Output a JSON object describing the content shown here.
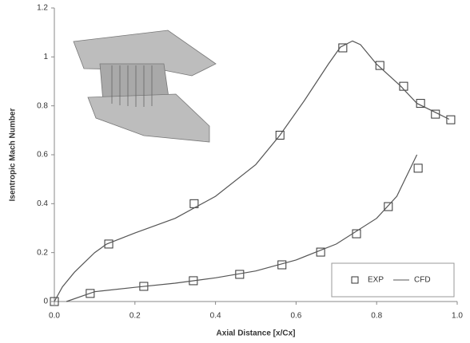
{
  "chart_data": {
    "type": "line",
    "xlabel": "Axial Distance [x/Cx]",
    "ylabel": "Isentropic Mach Number",
    "xlim": [
      0,
      1
    ],
    "ylim": [
      0,
      1.2
    ],
    "xticks": [
      {
        "value": 0,
        "label": "0.0"
      },
      0.2,
      0.4,
      0.6,
      0.8,
      {
        "value": 1,
        "label": "1.0"
      }
    ],
    "yticks": [
      0,
      0.2,
      0.4,
      0.6,
      0.8,
      1,
      1.2
    ],
    "grid": false,
    "legend": "lower right",
    "series": [
      {
        "name": "EXP",
        "color": "#333333",
        "marker": "square",
        "x": [
          0.0,
          0.135,
          0.347,
          0.56,
          0.716,
          0.808,
          0.867,
          0.909,
          0.946,
          0.984,
          0.089,
          0.222,
          0.345,
          0.46,
          0.565,
          0.661,
          0.75,
          0.829,
          0.903
        ],
        "values": [
          0.0,
          0.235,
          0.4,
          0.68,
          1.037,
          0.965,
          0.88,
          0.81,
          0.766,
          0.743,
          0.033,
          0.062,
          0.085,
          0.111,
          0.15,
          0.202,
          0.277,
          0.388,
          0.545
        ]
      },
      {
        "name": "CFD",
        "color": "#555555",
        "marker": "none",
        "x": [
          0,
          0.02,
          0.05,
          0.1,
          0.13,
          0.2,
          0.3,
          0.4,
          0.5,
          0.56,
          0.62,
          0.68,
          0.71,
          0.74,
          0.76,
          0.8,
          0.86,
          0.9,
          0.95,
          0.98,
          null,
          0.03,
          0.1,
          0.2,
          0.3,
          0.4,
          0.5,
          0.6,
          0.7,
          0.8,
          0.85,
          0.9
        ],
        "values": [
          0,
          0.06,
          0.12,
          0.2,
          0.235,
          0.28,
          0.34,
          0.43,
          0.56,
          0.68,
          0.82,
          0.97,
          1.04,
          1.065,
          1.05,
          0.97,
          0.88,
          0.81,
          0.77,
          0.745,
          null,
          0.0,
          0.04,
          0.058,
          0.075,
          0.097,
          0.125,
          0.17,
          0.235,
          0.34,
          0.43,
          0.6
        ]
      }
    ]
  }
}
